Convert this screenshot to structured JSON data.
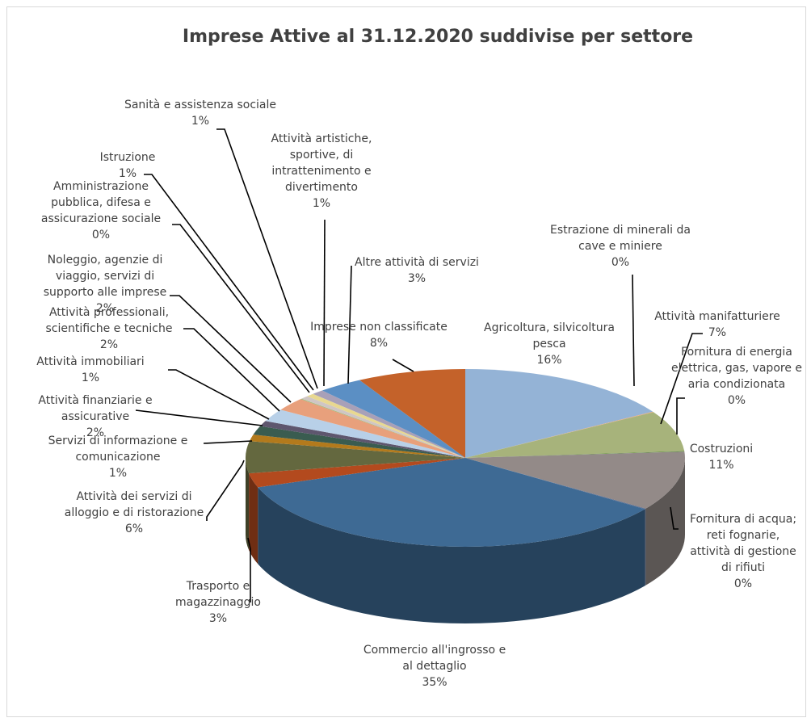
{
  "chart_data": {
    "type": "pie",
    "title": "Imprese Attive al 31.12.2020 suddivise per settore",
    "three_d": true,
    "slices": [
      {
        "label": "Agricoltura, silvicoltura pesca",
        "label_lines": [
          "Agricoltura, silvicoltura",
          "pesca"
        ],
        "percent_label": "16%",
        "value": 16.3,
        "color": "#94b3d6"
      },
      {
        "label": "Estrazione di minerali da cave e miniere",
        "label_lines": [
          "Estrazione di minerali da",
          "cave e miniere"
        ],
        "percent_label": "0%",
        "value": 0.1,
        "color": "#e8a87c"
      },
      {
        "label": "Attività manifatturiere",
        "label_lines": [
          "Attività manifatturiere"
        ],
        "percent_label": "7%",
        "value": 7.4,
        "color": "#a7b37b"
      },
      {
        "label": "Fornitura di energia elettrica, gas, vapore e aria condizionata",
        "label_lines": [
          "Fornitura di energia",
          "elettrica, gas, vapore e",
          "aria condizionata"
        ],
        "percent_label": "0%",
        "value": 0.1,
        "color": "#5a8a3c"
      },
      {
        "label": "Costruzioni",
        "label_lines": [
          "Costruzioni"
        ],
        "percent_label": "11%",
        "value": 10.8,
        "color": "#938a88"
      },
      {
        "label": "Fornitura di acqua; reti fognarie, attività di gestione di rifiuti",
        "label_lines": [
          "Fornitura di acqua;",
          "reti fognarie,",
          "attività di gestione",
          "di rifiuti"
        ],
        "percent_label": "0%",
        "value": 0.1,
        "color": "#5b6a8c"
      },
      {
        "label": "Commercio all'ingrosso e al dettaglio",
        "label_lines": [
          "Commercio all'ingrosso e",
          "al dettaglio"
        ],
        "percent_label": "35%",
        "value": 34.9,
        "color": "#3e6a94"
      },
      {
        "label": "Trasporto e magazzinaggio",
        "label_lines": [
          "Trasporto e",
          "magazzinaggio"
        ],
        "percent_label": "3%",
        "value": 2.6,
        "color": "#b34a1e"
      },
      {
        "label": "Attività dei servizi di alloggio e di ristorazione",
        "label_lines": [
          "Attività dei servizi di",
          "alloggio e di ristorazione"
        ],
        "percent_label": "6%",
        "value": 5.8,
        "color": "#64683f"
      },
      {
        "label": "Servizi di informazione e comunicazione",
        "label_lines": [
          "Servizi di informazione e",
          "comunicazione"
        ],
        "percent_label": "1%",
        "value": 1.2,
        "color": "#b37a1c"
      },
      {
        "label": "Attività finanziarie e assicurative",
        "label_lines": [
          "Attività finanziarie e",
          "assicurative"
        ],
        "percent_label": "2%",
        "value": 1.6,
        "color": "#3a5c50"
      },
      {
        "label": "Attività immobiliari",
        "label_lines": [
          "Attività immobiliari"
        ],
        "percent_label": "1%",
        "value": 1.0,
        "color": "#5e566e"
      },
      {
        "label": "Attività professionali, scientifiche e tecniche",
        "label_lines": [
          "Attività professionali,",
          "scientifiche e tecniche"
        ],
        "percent_label": "2%",
        "value": 2.3,
        "color": "#b8d0e8"
      },
      {
        "label": "Noleggio, agenzie di viaggio, servizi di supporto alle imprese",
        "label_lines": [
          "Noleggio, agenzie di",
          "viaggio, servizi di",
          "supporto alle imprese"
        ],
        "percent_label": "2%",
        "value": 2.4,
        "color": "#e8a07c"
      },
      {
        "label": "Amministrazione pubblica, difesa e assicurazione sociale",
        "label_lines": [
          "Amministrazione",
          "pubblica, difesa e",
          "assicurazione sociale"
        ],
        "percent_label": "0%",
        "value": 0.1,
        "color": "#9ab86c"
      },
      {
        "label": "Istruzione",
        "label_lines": [
          "Istruzione"
        ],
        "percent_label": "1%",
        "value": 0.6,
        "color": "#cfc6c4"
      },
      {
        "label": "Sanità e assistenza sociale",
        "label_lines": [
          "Sanità e assistenza sociale"
        ],
        "percent_label": "1%",
        "value": 0.6,
        "color": "#e8d890"
      },
      {
        "label": "Attività artistiche, sportive, di intrattenimento e divertimento",
        "label_lines": [
          "Attività artistiche,",
          "sportive, di",
          "intrattenimento e",
          "divertimento"
        ],
        "percent_label": "1%",
        "value": 0.9,
        "color": "#a8a0b8"
      },
      {
        "label": "Altre attività di servizi",
        "label_lines": [
          "Altre attività di servizi"
        ],
        "percent_label": "3%",
        "value": 3.3,
        "color": "#5b8fc4"
      },
      {
        "label": "Imprese non classificate",
        "label_lines": [
          "Imprese non classificate"
        ],
        "percent_label": "8%",
        "value": 8.0,
        "color": "#c4622a"
      }
    ]
  }
}
